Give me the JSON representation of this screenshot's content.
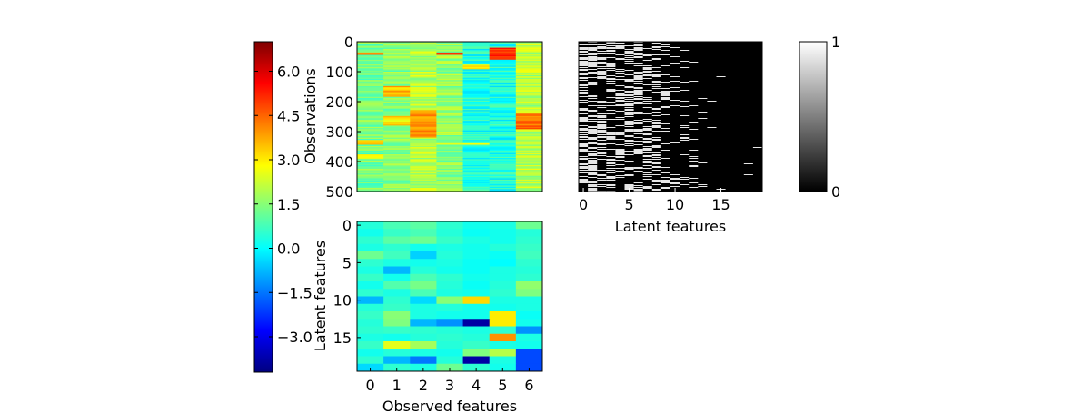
{
  "colors": {
    "jet_colormap": [
      "#00007f",
      "#0000ff",
      "#007fff",
      "#00ffff",
      "#7fff7f",
      "#ffff00",
      "#ff7f00",
      "#ff0000",
      "#7f0000"
    ],
    "gray_colormap": [
      "#000000",
      "#ffffff"
    ],
    "frame": "#000000"
  },
  "chart_data": [
    {
      "type": "colorbar",
      "colormap": "jet",
      "range": [
        -4.2,
        7.0
      ],
      "tick_values": [
        -3.0,
        -1.5,
        0.0,
        1.5,
        3.0,
        4.5,
        6.0
      ],
      "tick_labels": [
        "−3.0",
        "−1.5",
        "0.0",
        "1.5",
        "3.0",
        "4.5",
        "6.0"
      ]
    },
    {
      "type": "heatmap",
      "colormap": "jet",
      "ylabel": "Observations",
      "xlabel": "",
      "n_cols": 7,
      "n_rows": 500,
      "y_ticks": [
        0,
        100,
        200,
        300,
        400,
        500
      ],
      "y_tick_labels": [
        "0",
        "100",
        "200",
        "300",
        "400",
        "500"
      ],
      "column_base_values": [
        1.3,
        1.5,
        2.0,
        1.6,
        0.3,
        0.3,
        2.0
      ],
      "approx_bands": [
        {
          "col": 0,
          "rows": [
            35,
            45
          ],
          "value": 4.5
        },
        {
          "col": 0,
          "rows": [
            330,
            345
          ],
          "value": 3.0
        },
        {
          "col": 0,
          "rows": [
            375,
            390
          ],
          "value": 3.0
        },
        {
          "col": 1,
          "rows": [
            150,
            185
          ],
          "value": 3.5
        },
        {
          "col": 1,
          "rows": [
            250,
            280
          ],
          "value": 3.0
        },
        {
          "col": 2,
          "rows": [
            230,
            320
          ],
          "value": 4.0
        },
        {
          "col": 3,
          "rows": [
            35,
            45
          ],
          "value": 4.5
        },
        {
          "col": 3,
          "rows": [
            335,
            345
          ],
          "value": 3.0
        },
        {
          "col": 4,
          "rows": [
            75,
            90
          ],
          "value": 3.0
        },
        {
          "col": 4,
          "rows": [
            335,
            345
          ],
          "value": 3.0
        },
        {
          "col": 5,
          "rows": [
            20,
            60
          ],
          "value": 5.0
        },
        {
          "col": 6,
          "rows": [
            240,
            290
          ],
          "value": 4.5
        }
      ]
    },
    {
      "type": "heatmap",
      "colormap": "jet",
      "xlabel": "Observed features",
      "ylabel": "Latent features",
      "x_ticks": [
        0,
        1,
        2,
        3,
        4,
        5,
        6
      ],
      "x_tick_labels": [
        "0",
        "1",
        "2",
        "3",
        "4",
        "5",
        "6"
      ],
      "y_ticks": [
        0,
        5,
        10,
        15
      ],
      "y_tick_labels": [
        "0",
        "5",
        "10",
        "15"
      ],
      "values": [
        [
          0.4,
          0.8,
          1.0,
          0.5,
          0.2,
          0.3,
          1.2
        ],
        [
          0.2,
          0.6,
          0.8,
          0.4,
          0.1,
          0.2,
          0.4
        ],
        [
          0.5,
          1.0,
          1.2,
          0.6,
          0.3,
          0.2,
          0.5
        ],
        [
          0.3,
          0.5,
          0.2,
          0.3,
          0.2,
          0.4,
          0.6
        ],
        [
          1.2,
          0.7,
          -0.5,
          0.4,
          0.2,
          0.1,
          0.7
        ],
        [
          0.5,
          0.3,
          0.2,
          0.3,
          0.1,
          0.0,
          0.5
        ],
        [
          0.3,
          -0.8,
          0.4,
          0.2,
          0.1,
          0.3,
          0.4
        ],
        [
          0.6,
          0.2,
          0.8,
          0.5,
          0.2,
          0.3,
          0.5
        ],
        [
          0.2,
          0.9,
          1.3,
          0.4,
          0.1,
          0.4,
          1.6
        ],
        [
          0.5,
          0.3,
          0.8,
          0.3,
          0.2,
          0.5,
          1.4
        ],
        [
          -0.8,
          0.5,
          -0.4,
          1.5,
          3.2,
          0.3,
          0.3
        ],
        [
          0.4,
          0.6,
          0.3,
          0.4,
          0.2,
          0.2,
          0.3
        ],
        [
          0.6,
          1.5,
          0.3,
          0.2,
          0.2,
          3.0,
          0.1
        ],
        [
          0.4,
          1.4,
          -0.8,
          -1.2,
          -3.8,
          3.0,
          0.2
        ],
        [
          0.5,
          0.6,
          0.5,
          0.4,
          0.3,
          0.5,
          -1.2
        ],
        [
          0.3,
          0.2,
          0.4,
          0.5,
          0.4,
          4.0,
          0.3
        ],
        [
          0.6,
          2.5,
          1.8,
          0.4,
          0.6,
          0.3,
          0.2
        ],
        [
          0.2,
          0.4,
          0.3,
          0.2,
          1.4,
          2.0,
          -2.0
        ],
        [
          0.5,
          -0.8,
          -1.5,
          0.4,
          -3.8,
          0.3,
          -2.0
        ],
        [
          -0.4,
          0.5,
          0.3,
          1.2,
          0.5,
          0.2,
          -2.0
        ]
      ]
    },
    {
      "type": "heatmap",
      "colormap": "gray",
      "xlabel": "Latent features",
      "x_ticks": [
        0,
        5,
        10,
        15
      ],
      "x_tick_labels": [
        "0",
        "5",
        "10",
        "15"
      ],
      "n_cols": 20,
      "n_rows": 500,
      "column_active_fraction": [
        0.55,
        0.5,
        0.45,
        0.35,
        0.3,
        0.4,
        0.45,
        0.35,
        0.3,
        0.25,
        0.12,
        0.12,
        0.08,
        0.05,
        0.02,
        0.02,
        0.01,
        0.01,
        0.01,
        0.01
      ]
    },
    {
      "type": "colorbar",
      "colormap": "gray",
      "range": [
        0,
        1
      ],
      "tick_values": [
        0,
        1
      ],
      "tick_labels": [
        "0",
        "1"
      ]
    }
  ]
}
